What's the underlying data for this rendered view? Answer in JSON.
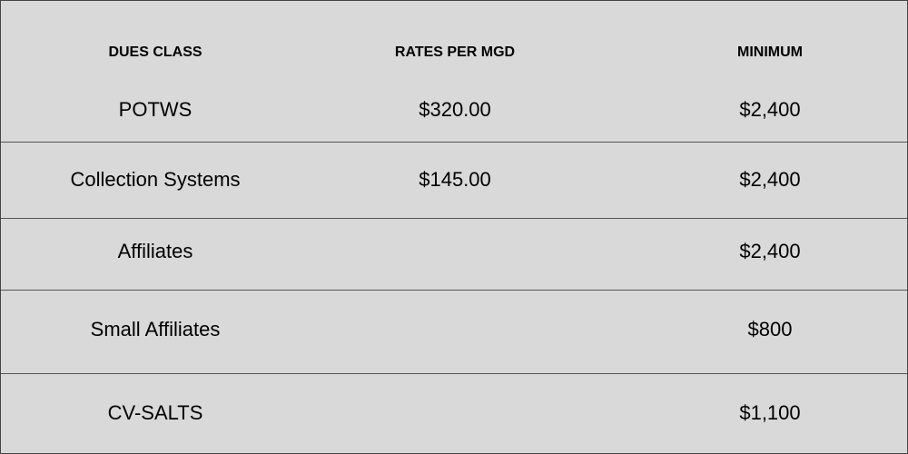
{
  "table": {
    "header": [
      "DUES CLASS",
      "RATES PER MGD",
      "MINIMUM"
    ],
    "rows": [
      [
        "POTWS",
        "$320.00",
        "$2,400"
      ],
      [
        "Collection Systems",
        "$145.00",
        "$2,400"
      ],
      [
        "Affiliates",
        null,
        "$2,400"
      ],
      [
        "Small Affiliates",
        null,
        "$800"
      ],
      [
        "CV-SALTS",
        null,
        "$1,100"
      ]
    ]
  }
}
